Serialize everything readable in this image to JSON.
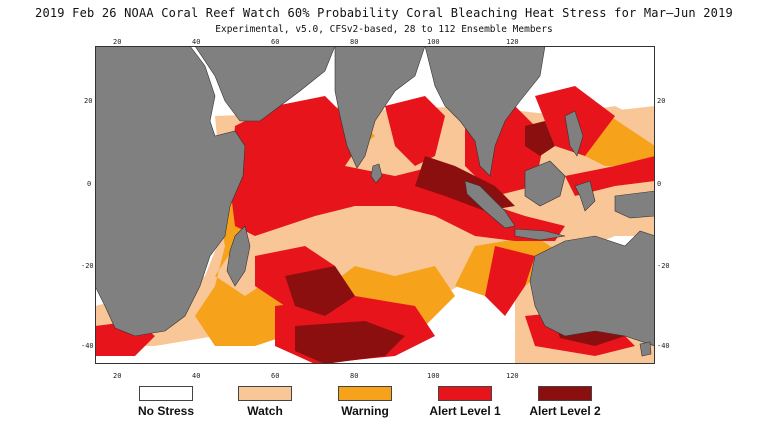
{
  "title": "2019 Feb 26 NOAA Coral Reef Watch 60% Probability Coral Bleaching Heat Stress for Mar–Jun 2019",
  "subtitle": "Experimental, v5.0, CFSv2-based, 28 to 112 Ensemble Members",
  "axes": {
    "top": [
      "20",
      "40",
      "60",
      "80",
      "100",
      "120"
    ],
    "bottom": [
      "20",
      "40",
      "60",
      "80",
      "100",
      "120"
    ],
    "left": [
      "20",
      "0",
      "-20",
      "-40"
    ],
    "right": [
      "20",
      "0",
      "-20",
      "-40"
    ]
  },
  "colors": {
    "no_stress": "#ffffff",
    "watch": "#f9c797",
    "warning": "#f6a21b",
    "alert1": "#e8141b",
    "alert2": "#8c0f0f",
    "land": "#808080",
    "background": "#ffffff"
  },
  "legend": [
    {
      "label": "No Stress",
      "color": "#ffffff"
    },
    {
      "label": "Watch",
      "color": "#f9c797"
    },
    {
      "label": "Warning",
      "color": "#f6a21b"
    },
    {
      "label": "Alert Level 1",
      "color": "#e8141b"
    },
    {
      "label": "Alert Level 2",
      "color": "#8c0f0f"
    }
  ]
}
